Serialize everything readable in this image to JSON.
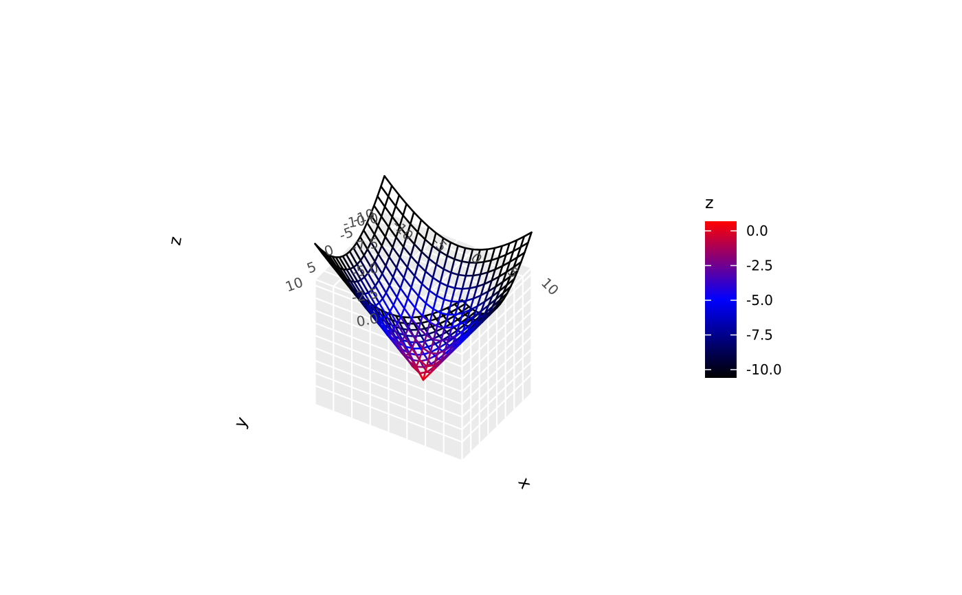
{
  "chart_data": {
    "type": "surface-wireframe",
    "function": "z = -sqrt(x^2 + y^2)",
    "x_range": [
      -10,
      10
    ],
    "y_range": [
      -10,
      10
    ],
    "grid_steps": 20,
    "z_range": [
      -10,
      0
    ],
    "xlabel": "x",
    "ylabel": "y",
    "zlabel": "z",
    "x_ticks": [
      "-10",
      "-5",
      "0",
      "5",
      "10"
    ],
    "y_ticks": [
      "-10",
      "-5",
      "0",
      "5",
      "10"
    ],
    "z_ticks": [
      "-10.0",
      "-7.5",
      "-5.0",
      "-2.5",
      "0.0"
    ],
    "colorscale": [
      {
        "value": -10.0,
        "color": "#000000"
      },
      {
        "value": -5.0,
        "color": "#0000ff"
      },
      {
        "value": 0.0,
        "color": "#ff0000"
      }
    ],
    "panel_color": "#ebebeb",
    "gridline_color": "#ffffff",
    "legend": {
      "title": "z",
      "labels": [
        "0.0",
        "-2.5",
        "-5.0",
        "-7.5",
        "-10.0"
      ],
      "position": "right"
    }
  }
}
